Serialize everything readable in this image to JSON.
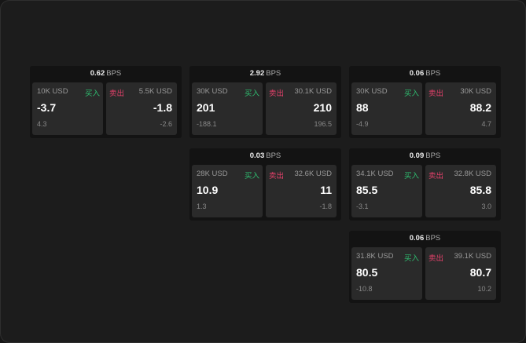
{
  "unit": "BPS",
  "buy_label": "买入",
  "sell_label": "卖出",
  "colors": {
    "buy": "#2fbf71",
    "sell": "#e5416b"
  },
  "cards": [
    {
      "spread": "0.62",
      "buy": {
        "qty": "10K USD",
        "price": "-3.7",
        "sub": "4.3"
      },
      "sell": {
        "qty": "5.5K USD",
        "price": "-1.8",
        "sub": "-2.6"
      }
    },
    {
      "spread": "2.92",
      "buy": {
        "qty": "30K USD",
        "price": "201",
        "sub": "-188.1"
      },
      "sell": {
        "qty": "30.1K USD",
        "price": "210",
        "sub": "196.5"
      }
    },
    {
      "spread": "0.06",
      "buy": {
        "qty": "30K USD",
        "price": "88",
        "sub": "-4.9"
      },
      "sell": {
        "qty": "30K USD",
        "price": "88.2",
        "sub": "4.7"
      }
    },
    {
      "spread": "0.03",
      "buy": {
        "qty": "28K USD",
        "price": "10.9",
        "sub": "1.3"
      },
      "sell": {
        "qty": "32.6K USD",
        "price": "11",
        "sub": "-1.8"
      }
    },
    {
      "spread": "0.09",
      "buy": {
        "qty": "34.1K USD",
        "price": "85.5",
        "sub": "-3.1"
      },
      "sell": {
        "qty": "32.8K USD",
        "price": "85.8",
        "sub": "3.0"
      }
    },
    {
      "spread": "0.06",
      "buy": {
        "qty": "31.8K USD",
        "price": "80.5",
        "sub": "-10.8"
      },
      "sell": {
        "qty": "39.1K USD",
        "price": "80.7",
        "sub": "10.2"
      }
    }
  ]
}
